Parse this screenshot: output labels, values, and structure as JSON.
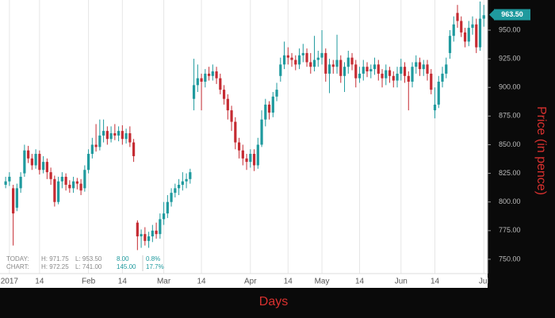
{
  "chart_data": {
    "type": "candlestick",
    "x_title": "Days",
    "y_title": "Price (in pence)",
    "up_color": "#1f9a9e",
    "down_color": "#c52b32",
    "grid": true,
    "xlim": [
      -1.5,
      128
    ],
    "ylim": [
      737.5,
      976.3
    ],
    "xticks": [
      {
        "value": 1,
        "label": "2017"
      },
      {
        "value": 9,
        "label": "14"
      },
      {
        "value": 22,
        "label": "Feb"
      },
      {
        "value": 31,
        "label": "14"
      },
      {
        "value": 42,
        "label": "Mar"
      },
      {
        "value": 52,
        "label": "14"
      },
      {
        "value": 65,
        "label": "Apr"
      },
      {
        "value": 75,
        "label": "14"
      },
      {
        "value": 84,
        "label": "May"
      },
      {
        "value": 94,
        "label": "14"
      },
      {
        "value": 105,
        "label": "Jun"
      },
      {
        "value": 114,
        "label": "14"
      },
      {
        "value": 127,
        "label": "Jul"
      }
    ],
    "yticks": [
      {
        "value": 750,
        "label": "750.00"
      },
      {
        "value": 775,
        "label": "775.00"
      },
      {
        "value": 800,
        "label": "800.00"
      },
      {
        "value": 825,
        "label": "825.00"
      },
      {
        "value": 850,
        "label": "850.00"
      },
      {
        "value": 875,
        "label": "875.00"
      },
      {
        "value": 900,
        "label": "900.00"
      },
      {
        "value": 925,
        "label": "925.00"
      },
      {
        "value": 950,
        "label": "950.00"
      }
    ],
    "last_price": {
      "value": 963.5,
      "label": "963.50"
    },
    "info": [
      {
        "label": "TODAY:",
        "high": "H: 971.75",
        "low": "L: 953.50",
        "change": "8.00",
        "pct": "0.8%"
      },
      {
        "label": "CHART:",
        "high": "H: 972.25",
        "low": "L: 741.00",
        "change": "145.00",
        "pct": "17.7%"
      }
    ],
    "open": [
      815,
      818,
      812,
      795,
      812,
      825,
      845,
      838,
      832,
      842,
      828,
      835,
      826,
      820,
      800,
      818,
      822,
      815,
      812,
      818,
      816,
      812,
      828,
      842,
      850,
      848,
      858,
      862,
      855,
      860,
      858,
      862,
      855,
      860,
      852,
      782,
      770,
      772,
      766,
      770,
      775,
      772,
      785,
      790,
      800,
      808,
      812,
      815,
      818,
      820,
      890,
      902,
      908,
      905,
      912,
      910,
      914,
      908,
      898,
      890,
      880,
      870,
      852,
      845,
      838,
      835,
      842,
      832,
      850,
      872,
      885,
      878,
      892,
      910,
      920,
      928,
      926,
      924,
      920,
      928,
      930,
      922,
      918,
      924,
      926,
      930,
      912,
      920,
      918,
      924,
      910,
      918,
      926,
      920,
      908,
      912,
      918,
      914,
      916,
      920,
      912,
      908,
      915,
      910,
      906,
      912,
      918,
      910,
      905,
      918,
      922,
      916,
      920,
      912,
      880,
      885,
      905,
      912,
      930,
      945,
      965,
      958,
      948,
      940,
      952,
      955,
      935,
      960
    ],
    "high": [
      822,
      826,
      815,
      816,
      826,
      850,
      849,
      842,
      846,
      845,
      840,
      838,
      830,
      823,
      822,
      826,
      825,
      819,
      822,
      821,
      820,
      832,
      846,
      856,
      868,
      872,
      872,
      866,
      866,
      868,
      866,
      867,
      864,
      866,
      855,
      784,
      776,
      778,
      774,
      780,
      782,
      790,
      800,
      806,
      812,
      816,
      820,
      826,
      825,
      829,
      925,
      920,
      912,
      916,
      918,
      920,
      918,
      912,
      902,
      894,
      884,
      874,
      856,
      850,
      842,
      846,
      846,
      856,
      880,
      890,
      888,
      896,
      904,
      926,
      940,
      935,
      930,
      928,
      934,
      938,
      934,
      930,
      945,
      932,
      950,
      934,
      925,
      924,
      946,
      928,
      922,
      932,
      930,
      924,
      918,
      924,
      922,
      920,
      926,
      924,
      916,
      920,
      918,
      914,
      918,
      925,
      922,
      914,
      922,
      928,
      926,
      924,
      924,
      916,
      900,
      910,
      918,
      926,
      950,
      962,
      972,
      962,
      952,
      958,
      962,
      960,
      975,
      972
    ],
    "low": [
      812,
      814,
      762,
      792,
      808,
      822,
      834,
      828,
      829,
      824,
      825,
      820,
      815,
      796,
      798,
      812,
      810,
      808,
      808,
      811,
      806,
      809,
      825,
      838,
      844,
      845,
      852,
      850,
      852,
      854,
      853,
      850,
      851,
      848,
      835,
      758,
      760,
      762,
      760,
      765,
      768,
      768,
      780,
      786,
      796,
      804,
      806,
      810,
      812,
      816,
      880,
      896,
      880,
      900,
      906,
      906,
      903,
      894,
      885,
      872,
      862,
      846,
      838,
      832,
      828,
      830,
      827,
      829,
      848,
      866,
      872,
      874,
      888,
      905,
      916,
      920,
      918,
      915,
      916,
      922,
      918,
      912,
      914,
      918,
      920,
      905,
      895,
      912,
      912,
      904,
      896,
      912,
      915,
      900,
      904,
      906,
      909,
      908,
      911,
      906,
      900,
      902,
      904,
      900,
      900,
      906,
      904,
      880,
      900,
      912,
      910,
      910,
      906,
      894,
      873,
      882,
      900,
      908,
      925,
      940,
      952,
      944,
      935,
      936,
      946,
      930,
      932,
      953
    ],
    "close": [
      818,
      822,
      790,
      812,
      822,
      845,
      838,
      832,
      842,
      828,
      835,
      826,
      820,
      800,
      818,
      822,
      815,
      812,
      818,
      816,
      810,
      828,
      842,
      850,
      848,
      858,
      862,
      855,
      860,
      858,
      862,
      855,
      860,
      852,
      840,
      770,
      772,
      766,
      770,
      775,
      772,
      785,
      790,
      800,
      808,
      812,
      815,
      818,
      820,
      826,
      902,
      908,
      905,
      912,
      910,
      914,
      908,
      898,
      890,
      880,
      870,
      852,
      845,
      838,
      835,
      842,
      832,
      850,
      872,
      885,
      878,
      892,
      898,
      920,
      928,
      926,
      924,
      920,
      928,
      930,
      922,
      918,
      924,
      926,
      930,
      912,
      920,
      918,
      924,
      910,
      918,
      926,
      920,
      908,
      912,
      918,
      914,
      916,
      920,
      912,
      908,
      915,
      910,
      906,
      912,
      918,
      910,
      905,
      918,
      922,
      916,
      920,
      912,
      898,
      885,
      905,
      912,
      920,
      945,
      955,
      958,
      948,
      940,
      952,
      955,
      935,
      960,
      963
    ]
  }
}
